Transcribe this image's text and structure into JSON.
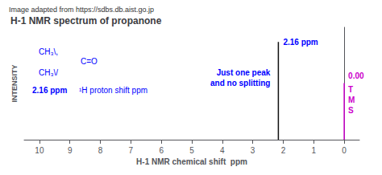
{
  "chart_data": {
    "type": "stem",
    "title": "H-1 NMR spectrum of propanone",
    "subtitle": "Image adapted from https://sdbs.db.aist.go.jp",
    "xlabel": "H-1 NMR chemical shift  ppm",
    "ylabel": "INTENSITY",
    "xlim": [
      10.5,
      -0.5
    ],
    "xticks": [
      10,
      9,
      8,
      7,
      6,
      5,
      4,
      3,
      2,
      1,
      0
    ],
    "ylim": [
      0,
      1.15
    ],
    "tick_labels": "x",
    "grid": false,
    "x": [
      2.16,
      0.0
    ],
    "values": [
      1.0,
      0.58
    ],
    "colors": [
      "#111111",
      "#cc00cc"
    ],
    "annotations": [
      {
        "text": "2.16 ppm",
        "color": "#0000ff"
      },
      {
        "text": "0.00",
        "color": "#cc00cc"
      },
      {
        "text": "T",
        "color": "#cc00cc"
      },
      {
        "text": "M",
        "color": "#cc00cc"
      },
      {
        "text": "S",
        "color": "#cc00cc"
      },
      {
        "text": "Just one peak\nand no splitting",
        "color": "#0000ff"
      },
      {
        "text": "CH₃\\,",
        "color": "#0000ff"
      },
      {
        "text": "C=O",
        "color": "#0000ff"
      },
      {
        "text": "CH₃\\/",
        "color": "#0000ff"
      },
      {
        "text": "2.16 ppm",
        "color": "#0000ff"
      },
      {
        "text": "¹H proton shift ppm",
        "color": "#0000ff"
      }
    ]
  }
}
